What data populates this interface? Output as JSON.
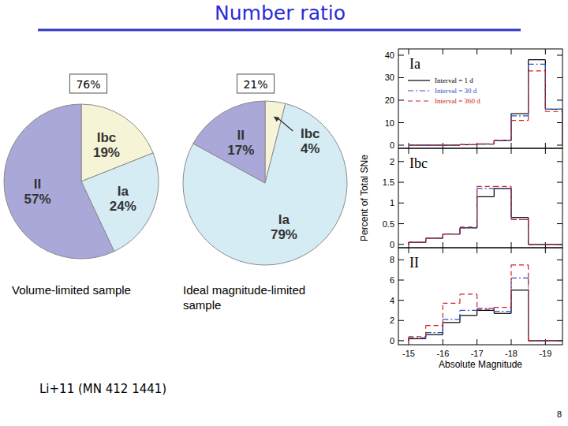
{
  "slide": {
    "title": "Number ratio",
    "citation": "Li+11 (MN 412 1441)",
    "page": 8
  },
  "chart_data": [
    {
      "type": "pie",
      "annotation": "76%",
      "subtitle": "Volume-limited sample",
      "categories": [
        "Ibc",
        "Ia",
        "II"
      ],
      "values": [
        19,
        24,
        57
      ],
      "value_labels": [
        "19%",
        "24%",
        "57%"
      ],
      "colors": [
        "#f6f4d6",
        "#d6ecf5",
        "#a9a8d8"
      ],
      "data_labels": true
    },
    {
      "type": "pie",
      "annotation": "21%",
      "subtitle": "Ideal magnitude-limited sample",
      "categories": [
        "Ibc",
        "Ia",
        "II"
      ],
      "values": [
        4,
        79,
        17
      ],
      "value_labels": [
        "4%",
        "79%",
        "17%"
      ],
      "colors": [
        "#f6f4d6",
        "#d6ecf5",
        "#a9a8d8"
      ],
      "data_labels": true
    },
    {
      "type": "histogram",
      "title": "Ia",
      "bins": [
        -15,
        -15.5,
        -16,
        -16.5,
        -17,
        -17.5,
        -18,
        -18.5,
        -19,
        -19.5
      ],
      "series": [
        {
          "name": "Interval = 1 d",
          "color": "#000000",
          "line_style": "solid",
          "values": [
            0,
            0,
            0,
            0.2,
            0.5,
            2,
            14,
            38,
            16
          ]
        },
        {
          "name": "Interval = 30 d",
          "color": "#3050c0",
          "line_style": "dashdot",
          "values": [
            0,
            0,
            0,
            0.2,
            0.5,
            2,
            13,
            36,
            16
          ]
        },
        {
          "name": "Interval = 360 d",
          "color": "#d02020",
          "line_style": "dashed",
          "values": [
            0,
            0,
            0,
            0.2,
            0.6,
            2.2,
            11,
            33,
            15
          ]
        }
      ],
      "xlim": [
        -14.7,
        -19.5
      ],
      "ylim": [
        -1.4,
        42.8
      ],
      "xticks": [
        -15,
        -16,
        -17,
        -18,
        -19
      ],
      "yticks": [
        0,
        10,
        20,
        30,
        40
      ],
      "tick_labels": "y",
      "legend": "upper left"
    },
    {
      "type": "histogram",
      "title": "Ibc",
      "y_label": "Percent of Total SNe",
      "bins": [
        -15,
        -15.5,
        -16,
        -16.5,
        -17,
        -17.5,
        -18,
        -18.5,
        -19,
        -19.5
      ],
      "series": [
        {
          "name": "Interval = 1 d",
          "color": "#000000",
          "line_style": "solid",
          "values": [
            0.05,
            0.15,
            0.25,
            0.4,
            1.15,
            1.35,
            0.65,
            0,
            0
          ]
        },
        {
          "name": "Interval = 30 d",
          "color": "#3050c0",
          "line_style": "dashdot",
          "values": [
            0.05,
            0.15,
            0.25,
            0.4,
            1.35,
            1.35,
            0.6,
            0,
            0
          ]
        },
        {
          "name": "Interval = 360 d",
          "color": "#d02020",
          "line_style": "dashed",
          "values": [
            0.05,
            0.15,
            0.25,
            0.42,
            1.4,
            1.4,
            0.6,
            0,
            0
          ]
        }
      ],
      "xlim": [
        -14.7,
        -19.5
      ],
      "ylim": [
        -0.08,
        2.32
      ],
      "xticks": [
        -15,
        -16,
        -17,
        -18,
        -19
      ],
      "yticks": [
        0,
        0.5,
        1,
        1.5,
        2
      ],
      "tick_labels": "y",
      "legend": false
    },
    {
      "type": "histogram",
      "title": "II",
      "x_label": "Absolute Magnitude",
      "bins": [
        -15,
        -15.5,
        -16,
        -16.5,
        -17,
        -17.5,
        -18,
        -18.5,
        -19,
        -19.5
      ],
      "series": [
        {
          "name": "Interval = 1 d",
          "color": "#000000",
          "line_style": "solid",
          "values": [
            0.2,
            0.6,
            1.8,
            2.5,
            3.0,
            2.7,
            5.0,
            0,
            0
          ]
        },
        {
          "name": "Interval = 30 d",
          "color": "#3050c0",
          "line_style": "dashdot",
          "values": [
            0.3,
            0.8,
            2.1,
            3.0,
            3.2,
            2.9,
            6.2,
            0,
            0
          ]
        },
        {
          "name": "Interval = 360 d",
          "color": "#d02020",
          "line_style": "dashed",
          "values": [
            0.4,
            1.5,
            3.7,
            4.6,
            3.1,
            3.3,
            7.5,
            0,
            0
          ]
        }
      ],
      "xlim": [
        -14.7,
        -19.5
      ],
      "ylim": [
        -0.4,
        9.2
      ],
      "xticks": [
        -15,
        -16,
        -17,
        -18,
        -19
      ],
      "yticks": [
        0,
        2,
        4,
        6,
        8
      ],
      "legend": false
    }
  ]
}
